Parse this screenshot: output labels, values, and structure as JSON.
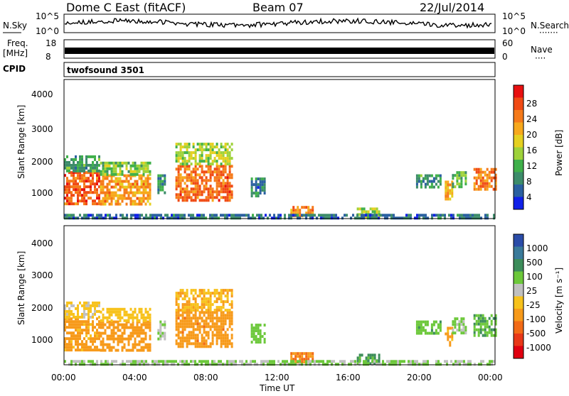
{
  "header": {
    "station": "Dome C East (fitACF)",
    "beam": "Beam 07",
    "date": "22/Jul/2014"
  },
  "strips": {
    "nsky": {
      "label": "N.Sky",
      "left_ticks": [
        "10^5",
        "10^0"
      ],
      "right_ticks": [
        "10^5",
        "10^0"
      ],
      "right_label": "N.Search",
      "right_dots": "·······"
    },
    "freq": {
      "label_line1": "Freq.",
      "label_line2": "[MHz]",
      "left_ticks": [
        "18",
        "8"
      ],
      "right_ticks": [
        "60",
        "0"
      ],
      "right_label": "Nave",
      "right_dots": "····"
    },
    "cpid": {
      "label": "CPID",
      "value": "twofsound 3501"
    }
  },
  "colorbars": {
    "power": {
      "label": "Power [dB]",
      "ticks": [
        "28",
        "24",
        "20",
        "16",
        "12",
        "8",
        "4"
      ],
      "colors": [
        "#e81010",
        "#f04a14",
        "#f57a1a",
        "#f7a81c",
        "#e5d020",
        "#9ed23a",
        "#3fb04a",
        "#3c8c6a",
        "#2a60a0",
        "#1020e8"
      ]
    },
    "velocity": {
      "label": "Velocity [m s⁻¹]",
      "ticks": [
        "1000",
        "500",
        "100",
        "25",
        "-25",
        "-100",
        "-500",
        "-1000"
      ],
      "colors": [
        "#2a4ca8",
        "#3a7a9a",
        "#3c8c5a",
        "#6cc83a",
        "#c0c0c0",
        "#f7c21c",
        "#f79a1a",
        "#f26a16",
        "#e83818",
        "#e00010"
      ]
    }
  },
  "chart_data": [
    {
      "type": "heatmap",
      "panel": "power",
      "ylabel": "Slant Range [km]",
      "yticks": [
        "4000",
        "3000",
        "2000",
        "1000"
      ],
      "ylim": [
        200,
        4600
      ],
      "x_range_hours": [
        0,
        24
      ],
      "value_unit": "dB",
      "value_range": [
        0,
        32
      ],
      "regions": [
        {
          "t0": 0.0,
          "t1": 2.0,
          "r0": 700,
          "r1": 1700,
          "value": 26
        },
        {
          "t0": 0.0,
          "t1": 2.0,
          "r0": 1700,
          "r1": 2200,
          "value": 10
        },
        {
          "t0": 2.0,
          "t1": 4.8,
          "r0": 650,
          "r1": 1600,
          "value": 22
        },
        {
          "t0": 2.0,
          "t1": 4.8,
          "r0": 1600,
          "r1": 2000,
          "value": 13
        },
        {
          "t0": 5.2,
          "t1": 5.6,
          "r0": 1000,
          "r1": 1600,
          "value": 9
        },
        {
          "t0": 6.2,
          "t1": 9.4,
          "r0": 800,
          "r1": 1900,
          "value": 25
        },
        {
          "t0": 6.2,
          "t1": 9.4,
          "r0": 1900,
          "r1": 2600,
          "value": 15
        },
        {
          "t0": 10.4,
          "t1": 11.2,
          "r0": 900,
          "r1": 1500,
          "value": 7
        },
        {
          "t0": 12.6,
          "t1": 13.8,
          "r0": 250,
          "r1": 600,
          "value": 23
        },
        {
          "t0": 16.3,
          "t1": 17.6,
          "r0": 250,
          "r1": 550,
          "value": 14
        },
        {
          "t0": 19.6,
          "t1": 21.0,
          "r0": 1200,
          "r1": 1600,
          "value": 9
        },
        {
          "t0": 21.2,
          "t1": 21.6,
          "r0": 800,
          "r1": 1400,
          "value": 20
        },
        {
          "t0": 21.6,
          "t1": 22.4,
          "r0": 1200,
          "r1": 1700,
          "value": 12
        },
        {
          "t0": 22.8,
          "t1": 24.0,
          "r0": 1100,
          "r1": 1800,
          "value": 24
        },
        {
          "t0": 0.0,
          "t1": 24.0,
          "r0": 200,
          "r1": 350,
          "value": 6
        }
      ]
    },
    {
      "type": "heatmap",
      "panel": "velocity",
      "ylabel": "Slant Range [km]",
      "yticks": [
        "4000",
        "3000",
        "2000",
        "1000"
      ],
      "ylim": [
        200,
        4600
      ],
      "xticks": [
        "00:00",
        "04:00",
        "08:00",
        "12:00",
        "16:00",
        "20:00",
        "00:00"
      ],
      "xlabel": "Time UT",
      "x_range_hours": [
        0,
        24
      ],
      "value_unit": "m s^-1",
      "regions": [
        {
          "t0": 0.0,
          "t1": 2.0,
          "r0": 700,
          "r1": 1700,
          "value": -150
        },
        {
          "t0": 0.0,
          "t1": 2.0,
          "r0": 1700,
          "r1": 2200,
          "value": -40
        },
        {
          "t0": 2.0,
          "t1": 4.8,
          "r0": 650,
          "r1": 1600,
          "value": -200
        },
        {
          "t0": 2.0,
          "t1": 4.8,
          "r0": 1600,
          "r1": 2000,
          "value": -60
        },
        {
          "t0": 5.2,
          "t1": 5.6,
          "r0": 1000,
          "r1": 1600,
          "value": 30
        },
        {
          "t0": 6.2,
          "t1": 9.4,
          "r0": 800,
          "r1": 1900,
          "value": -220
        },
        {
          "t0": 6.2,
          "t1": 9.4,
          "r0": 1900,
          "r1": 2600,
          "value": -90
        },
        {
          "t0": 10.4,
          "t1": 11.2,
          "r0": 900,
          "r1": 1500,
          "value": 60
        },
        {
          "t0": 12.6,
          "t1": 13.8,
          "r0": 250,
          "r1": 600,
          "value": -300
        },
        {
          "t0": 16.3,
          "t1": 17.6,
          "r0": 250,
          "r1": 550,
          "value": 120
        },
        {
          "t0": 19.6,
          "t1": 21.0,
          "r0": 1200,
          "r1": 1600,
          "value": 80
        },
        {
          "t0": 21.2,
          "t1": 21.6,
          "r0": 800,
          "r1": 1400,
          "value": -120
        },
        {
          "t0": 21.6,
          "t1": 22.4,
          "r0": 1200,
          "r1": 1700,
          "value": 40
        },
        {
          "t0": 22.8,
          "t1": 24.0,
          "r0": 1100,
          "r1": 1800,
          "value": 90
        },
        {
          "t0": 0.0,
          "t1": 24.0,
          "r0": 200,
          "r1": 350,
          "value": 30
        }
      ]
    }
  ]
}
